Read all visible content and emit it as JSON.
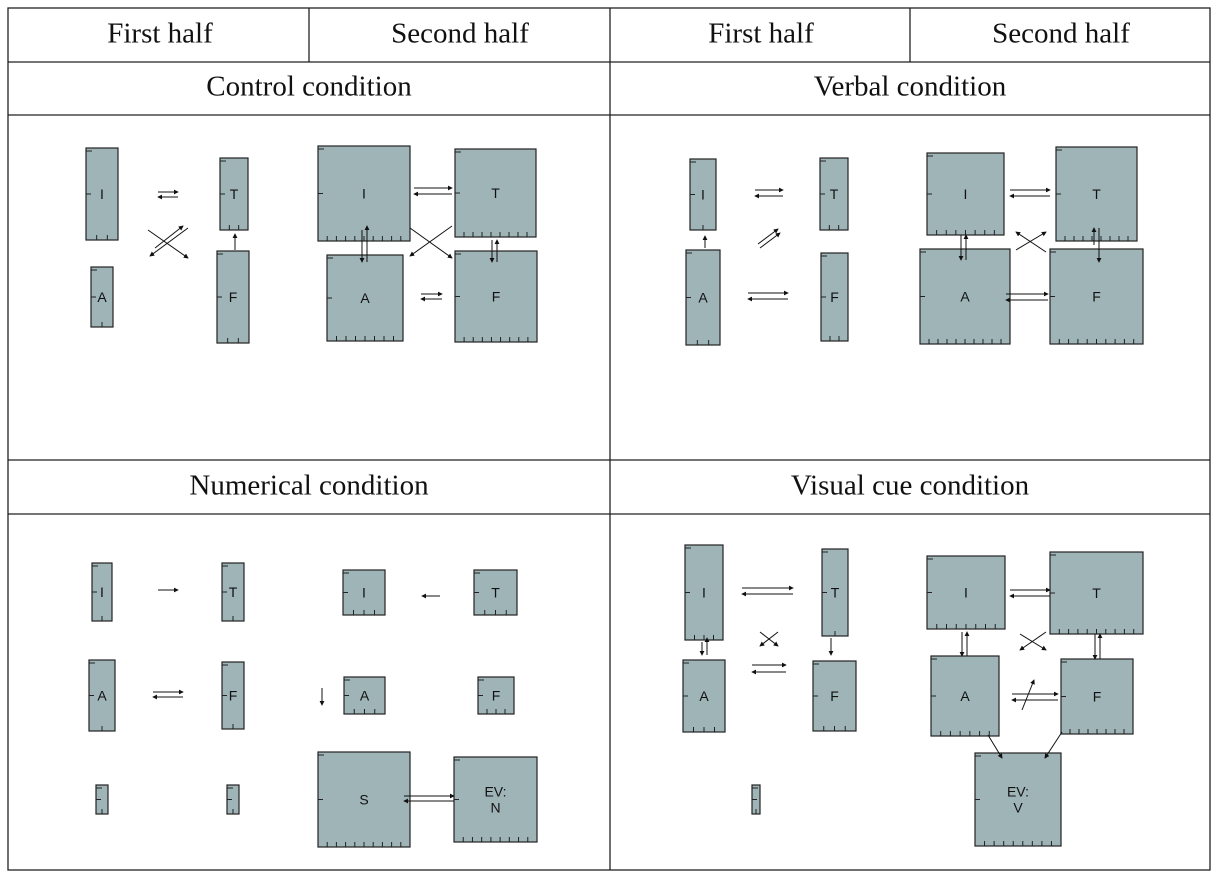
{
  "header": {
    "columns": [
      "First half",
      "Second half",
      "First half",
      "Second half"
    ]
  },
  "panels": [
    {
      "title": "Control condition",
      "first_half": {
        "nodes": [
          "I",
          "T",
          "A",
          "F"
        ]
      },
      "second_half": {
        "nodes": [
          "I",
          "T",
          "A",
          "F"
        ]
      }
    },
    {
      "title": "Verbal condition",
      "first_half": {
        "nodes": [
          "I",
          "T",
          "A",
          "F"
        ]
      },
      "second_half": {
        "nodes": [
          "I",
          "T",
          "A",
          "F"
        ]
      }
    },
    {
      "title": "Numerical condition",
      "first_half": {
        "nodes": [
          "I",
          "T",
          "A",
          "F"
        ]
      },
      "second_half": {
        "nodes": [
          "I",
          "T",
          "A",
          "F",
          "S",
          "EV:\nN"
        ]
      }
    },
    {
      "title": "Visual cue condition",
      "first_half": {
        "nodes": [
          "I",
          "T",
          "A",
          "F"
        ]
      },
      "second_half": {
        "nodes": [
          "I",
          "T",
          "A",
          "F",
          "EV:\nV"
        ]
      }
    }
  ]
}
